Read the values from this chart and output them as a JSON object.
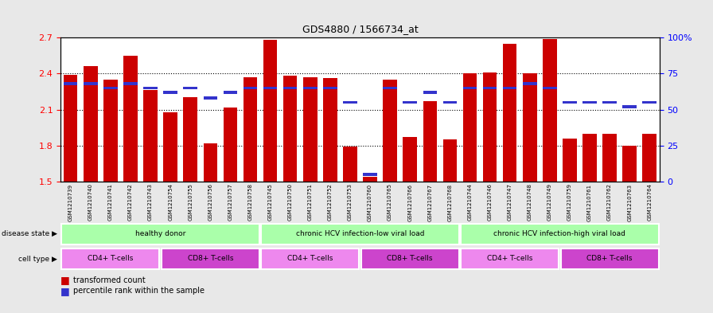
{
  "title": "GDS4880 / 1566734_at",
  "samples": [
    "GSM1210739",
    "GSM1210740",
    "GSM1210741",
    "GSM1210742",
    "GSM1210743",
    "GSM1210754",
    "GSM1210755",
    "GSM1210756",
    "GSM1210757",
    "GSM1210758",
    "GSM1210745",
    "GSM1210750",
    "GSM1210751",
    "GSM1210752",
    "GSM1210753",
    "GSM1210760",
    "GSM1210765",
    "GSM1210766",
    "GSM1210767",
    "GSM1210768",
    "GSM1210744",
    "GSM1210746",
    "GSM1210747",
    "GSM1210748",
    "GSM1210749",
    "GSM1210759",
    "GSM1210761",
    "GSM1210762",
    "GSM1210763",
    "GSM1210764"
  ],
  "transformed_count": [
    2.39,
    2.46,
    2.35,
    2.55,
    2.26,
    2.08,
    2.2,
    1.82,
    2.12,
    2.37,
    2.68,
    2.38,
    2.37,
    2.36,
    1.79,
    1.54,
    2.35,
    1.87,
    2.17,
    1.85,
    2.4,
    2.41,
    2.65,
    2.4,
    2.69,
    1.86,
    1.9,
    1.9,
    1.8,
    1.9
  ],
  "percentile_rank": [
    68,
    68,
    65,
    68,
    65,
    62,
    65,
    58,
    62,
    65,
    65,
    65,
    65,
    65,
    55,
    5,
    65,
    55,
    62,
    55,
    65,
    65,
    65,
    68,
    65,
    55,
    55,
    55,
    52,
    55
  ],
  "ylim": [
    1.5,
    2.7
  ],
  "yticks": [
    1.5,
    1.8,
    2.1,
    2.4,
    2.7
  ],
  "right_yticks": [
    0,
    25,
    50,
    75,
    100
  ],
  "bar_color": "#cc0000",
  "blue_color": "#3333cc",
  "bar_bottom": 1.5,
  "bg_color": "#e8e8e8",
  "plot_bg": "#ffffff"
}
